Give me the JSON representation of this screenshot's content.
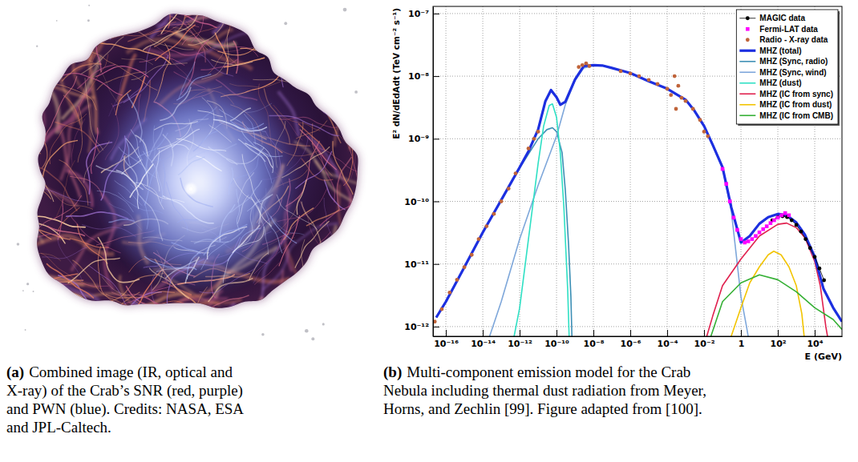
{
  "chart_data": {
    "type": "line",
    "log": true,
    "grid": true,
    "legend": "top-right",
    "x_label": "E (GeV)",
    "y_label": "E² dN/dEdAdt (TeV cm⁻² s⁻¹)",
    "xlim": [
      2e-17,
      300000.0
    ],
    "ylim": [
      7e-13,
      1.3e-07
    ],
    "xticks": [
      {
        "value": 1e-16,
        "label": "10⁻¹⁶"
      },
      {
        "value": 1e-14,
        "label": "10⁻¹⁴"
      },
      {
        "value": 1e-12,
        "label": "10⁻¹²"
      },
      {
        "value": 1e-10,
        "label": "10⁻¹⁰"
      },
      {
        "value": 1e-08,
        "label": "10⁻⁸"
      },
      {
        "value": 1e-06,
        "label": "10⁻⁶"
      },
      {
        "value": 0.0001,
        "label": "10⁻⁴"
      },
      {
        "value": 0.01,
        "label": "10⁻²"
      },
      1,
      {
        "value": 100,
        "label": "10²"
      },
      {
        "value": 10000,
        "label": "10⁴"
      }
    ],
    "yticks": [
      {
        "value": 1e-12,
        "label": "10⁻¹²"
      },
      {
        "value": 1e-11,
        "label": "10⁻¹¹"
      },
      {
        "value": 1e-10,
        "label": "10⁻¹⁰"
      },
      {
        "value": 1e-09,
        "label": "10⁻⁹"
      },
      {
        "value": 1e-08,
        "label": "10⁻⁸"
      },
      {
        "value": 1e-07,
        "label": "10⁻⁷"
      }
    ],
    "series": [
      {
        "name": "MAGIC data",
        "type": "scatter",
        "color": "#000000",
        "marker": "circle",
        "line_style": "solid",
        "x": [
          50,
          100,
          180,
          320,
          560,
          1000,
          1800,
          3200,
          5600,
          10000,
          18000,
          32000
        ],
        "values": [
          5e-11,
          5.6e-11,
          5.8e-11,
          5.6e-11,
          5e-11,
          4.2e-11,
          3.3e-11,
          2.5e-11,
          1.8e-11,
          1.3e-11,
          8.5e-12,
          5.5e-12
        ]
      },
      {
        "name": "Fermi-LAT data",
        "type": "scatter",
        "color": "#ff00ff",
        "marker": "square",
        "x": [
          0.1,
          0.16,
          0.25,
          0.4,
          0.63,
          1,
          1.6,
          2.5,
          4,
          6.3,
          10,
          16,
          25,
          40,
          63,
          100,
          160,
          250,
          400
        ],
        "values": [
          3.3e-10,
          1.9e-10,
          1e-10,
          5.5e-11,
          3.5e-11,
          2.5e-11,
          2.2e-11,
          2.3e-11,
          2.5e-11,
          2.8e-11,
          3.2e-11,
          3.6e-11,
          4e-11,
          4.5e-11,
          5e-11,
          5.5e-11,
          6e-11,
          6.5e-11,
          6e-11
        ]
      },
      {
        "name": "Radio - X-ray data",
        "type": "scatter",
        "color": "#c0643a",
        "marker": "circle",
        "x": [
          2.5e-17,
          6e-17,
          1.6e-16,
          4e-16,
          1e-15,
          2.5e-15,
          6e-15,
          1.6e-14,
          4e-14,
          1e-13,
          2.5e-13,
          6e-13,
          3e-12,
          6e-12,
          1e-11,
          1.6e-09,
          2.5e-09,
          4e-09,
          6e-09,
          3e-07,
          1e-06,
          3e-06,
          1e-05,
          3e-05,
          0.0001,
          0.00016,
          0.00025,
          0.0003,
          0.0004,
          0.0006,
          0.001,
          0.0025,
          0.006,
          0.01,
          0.016
        ],
        "values": [
          1.2e-12,
          1.9e-12,
          3.5e-12,
          5.6e-12,
          8.9e-12,
          1.4e-11,
          2.5e-11,
          4e-11,
          6.3e-11,
          1e-10,
          1.6e-10,
          2.8e-10,
          7e-10,
          1e-09,
          1.3e-09,
          1.4e-08,
          1.5e-08,
          1.6e-08,
          1.45e-08,
          1.2e-08,
          1.1e-08,
          1e-08,
          8.7e-09,
          7.5e-09,
          6.3e-09,
          5e-09,
          1e-08,
          3e-09,
          7e-09,
          4.5e-09,
          4e-09,
          3e-09,
          2e-09,
          1.3e-09,
          1.1e-09
        ]
      },
      {
        "name": "MHZ (total)",
        "type": "line",
        "color": "#1c2fe0",
        "line_style": "solid",
        "x": [
          3e-17,
          1e-16,
          1e-15,
          1e-14,
          1e-13,
          1e-12,
          3e-12,
          1e-11,
          2.5e-11,
          5e-11,
          1e-10,
          1.6e-10,
          3e-10,
          1e-09,
          3e-09,
          1e-08,
          3e-08,
          1e-07,
          1e-06,
          1e-05,
          0.0001,
          0.001,
          0.003,
          0.01,
          0.03,
          0.1,
          0.3,
          1,
          3,
          10,
          30,
          100,
          300,
          1000,
          3000,
          10000,
          30000,
          100000,
          300000
        ],
        "values": [
          1.4e-12,
          2.5e-12,
          8.9e-12,
          3.2e-11,
          1.05e-10,
          3.5e-10,
          6.3e-10,
          1.4e-09,
          4e-09,
          6e-09,
          4.6e-09,
          3.5e-09,
          3.9e-09,
          8.8e-09,
          1.45e-08,
          1.5e-08,
          1.48e-08,
          1.35e-08,
          1.12e-08,
          8.3e-09,
          6.3e-09,
          4.2e-09,
          2.8e-09,
          1.6e-09,
          7.9e-10,
          3.5e-10,
          8e-11,
          2.2e-11,
          2.8e-11,
          4.4e-11,
          5.6e-11,
          6.3e-11,
          6e-11,
          4.6e-11,
          2.9e-11,
          1.3e-11,
          4e-12,
          2e-12,
          1.2e-12
        ]
      },
      {
        "name": "MHZ (Sync, radio)",
        "type": "line",
        "color": "#3d8fb5",
        "line_style": "solid",
        "x": [
          3e-17,
          1e-16,
          1e-15,
          1e-14,
          1e-13,
          1e-12,
          1e-11,
          3e-11,
          6e-11,
          1e-10,
          2e-10,
          3e-10,
          4.5e-10,
          6e-10,
          7e-10
        ],
        "values": [
          1.4e-12,
          2.5e-12,
          8.9e-12,
          3.2e-11,
          1.05e-10,
          3.4e-10,
          1e-09,
          1.4e-09,
          1.5e-09,
          1.3e-09,
          6e-10,
          1.5e-10,
          2e-11,
          3e-12,
          5e-13
        ]
      },
      {
        "name": "MHZ (Sync, wind)",
        "type": "line",
        "color": "#7ea7da",
        "line_style": "solid",
        "x": [
          1.6e-14,
          1e-13,
          1e-12,
          1e-11,
          1e-10,
          3e-10,
          1e-09,
          3e-09,
          1e-08,
          3e-08,
          1e-07,
          1e-06,
          1e-05,
          0.0001,
          0.001,
          0.003,
          0.01,
          0.03,
          0.1,
          0.3,
          1,
          2,
          3
        ],
        "values": [
          5e-13,
          2.5e-12,
          2.5e-11,
          1.8e-10,
          1.1e-09,
          3.5e-09,
          8.5e-09,
          1.35e-08,
          1.48e-08,
          1.47e-08,
          1.35e-08,
          1.12e-08,
          8.3e-09,
          6.3e-09,
          4.2e-09,
          2.8e-09,
          1.6e-09,
          7.9e-10,
          3.4e-10,
          7e-11,
          3e-12,
          1e-12,
          5e-13
        ]
      },
      {
        "name": "MHZ (dust)",
        "type": "line",
        "color": "#2fe0c4",
        "line_style": "solid",
        "x": [
          4e-13,
          1e-12,
          3e-12,
          1e-11,
          2e-11,
          4e-11,
          6e-11,
          1e-10,
          1.6e-10,
          2.5e-10,
          4e-10,
          5e-10
        ],
        "values": [
          5e-13,
          2e-12,
          2.5e-11,
          4e-10,
          1.6e-09,
          3.4e-09,
          3.6e-09,
          2.2e-09,
          6e-10,
          8e-11,
          4e-12,
          5e-13
        ]
      },
      {
        "name": "MHZ (IC from sync)",
        "type": "line",
        "color": "#e0204e",
        "line_style": "solid",
        "x": [
          0.01,
          0.03,
          0.1,
          1,
          10,
          100,
          300,
          1000,
          3000,
          10000,
          20000,
          40000,
          60000
        ],
        "values": [
          5e-13,
          1.5e-12,
          4.5e-12,
          1.2e-11,
          2.8e-11,
          4.3e-11,
          4.5e-11,
          3.8e-11,
          2.6e-11,
          1.1e-11,
          4.5e-12,
          1e-12,
          5e-13
        ]
      },
      {
        "name": "MHZ (IC from dust)",
        "type": "line",
        "color": "#f2c400",
        "line_style": "solid",
        "x": [
          0.2,
          1,
          3,
          10,
          30,
          60,
          150,
          400,
          1000,
          2000,
          3000
        ],
        "values": [
          5e-13,
          2e-12,
          5e-12,
          9e-12,
          1.4e-11,
          1.6e-11,
          1.4e-11,
          9e-12,
          4.5e-12,
          1.6e-12,
          5e-13
        ]
      },
      {
        "name": "MHZ (IC from CMB)",
        "type": "line",
        "color": "#35b035",
        "line_style": "solid",
        "x": [
          0.016,
          0.1,
          1,
          10,
          100,
          1000,
          10000,
          100000,
          300000
        ],
        "values": [
          5e-13,
          2.5e-12,
          5e-12,
          6.7e-12,
          5.6e-12,
          3.6e-12,
          2e-12,
          1.3e-12,
          9e-13
        ]
      }
    ]
  },
  "figure": {
    "panels": [
      {
        "label": "(a)",
        "caption_lines": [
          "Combined image (IR, optical and",
          "X-ray) of the Crab’s SNR (red, purple)",
          "and PWN (blue). Credits: NASA, ESA",
          "and JPL-Caltech."
        ]
      },
      {
        "label": "(b)",
        "caption_lines": [
          "Multi-component emission model for the Crab",
          "Nebula including thermal dust radiation from Meyer,",
          "Horns, and Zechlin [99]. Figure adapted from [100]."
        ]
      }
    ]
  }
}
